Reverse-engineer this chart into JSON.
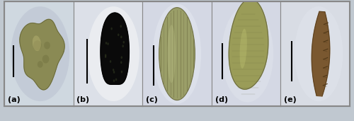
{
  "figsize": [
    5.0,
    1.71
  ],
  "dpi": 100,
  "n_panels": 5,
  "panel_labels": [
    "(a)",
    "(b)",
    "(c)",
    "(d)",
    "(e)"
  ],
  "label_fontsize": 8,
  "label_color": "#000000",
  "border_color": "#888888",
  "border_linewidth": 1.5,
  "bg_colors": [
    "#cdd4dc",
    "#dce0e8",
    "#d8dce4",
    "#d8dce4",
    "#dce0e8"
  ],
  "seed_colors_main": [
    "#8a8a50",
    "#080808",
    "#9a9a60",
    "#9a9850",
    "#7a5830"
  ],
  "seed_colors_edge": [
    "#606030",
    "#101010",
    "#686840",
    "#686830",
    "#503818"
  ],
  "scale_bar_color": "#000000"
}
